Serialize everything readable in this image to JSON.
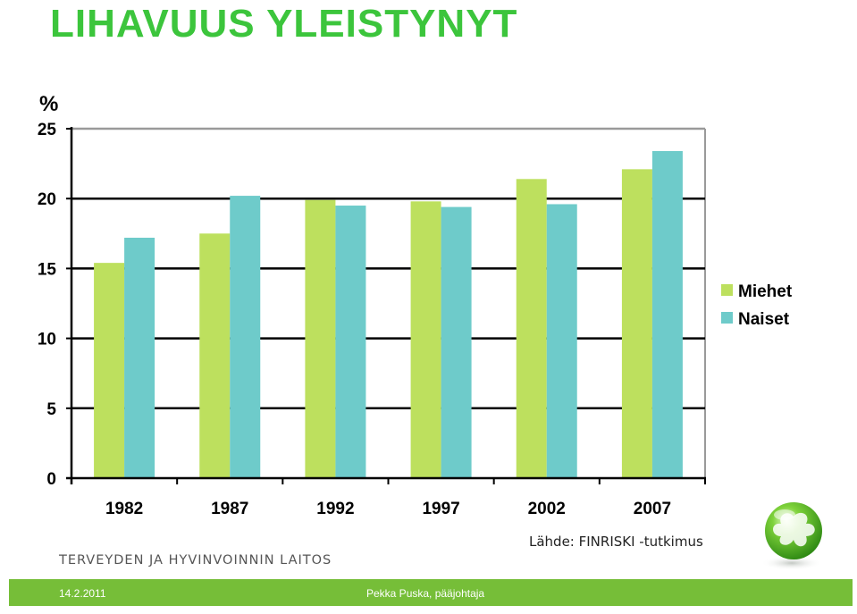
{
  "title": "LIHAVUUS YLEISTYNYT",
  "source_note": "Lähde: FINRISKI -tutkimus",
  "organization": "TERVEYDEN JA HYVINVOINNIN LAITOS",
  "footer": {
    "date": "14.2.2011",
    "author": "Pekka Puska, pääjohtaja"
  },
  "colors": {
    "title": "#3cc53c",
    "footer_bar": "#76be38",
    "miehet": "#bde05e",
    "naiset": "#6ecbca"
  },
  "chart_data": {
    "type": "bar",
    "title": "",
    "xlabel": "",
    "ylabel": "%",
    "categories": [
      "1982",
      "1987",
      "1992",
      "1997",
      "2002",
      "2007"
    ],
    "series": [
      {
        "name": "Miehet",
        "values": [
          15.4,
          17.5,
          19.9,
          19.8,
          21.4,
          22.1
        ]
      },
      {
        "name": "Naiset",
        "values": [
          17.2,
          20.2,
          19.5,
          19.4,
          19.6,
          23.4
        ]
      }
    ],
    "ylim": [
      0,
      25
    ],
    "yticks": [
      0,
      5,
      10,
      15,
      20,
      25
    ],
    "grid": true,
    "legend": "right"
  }
}
